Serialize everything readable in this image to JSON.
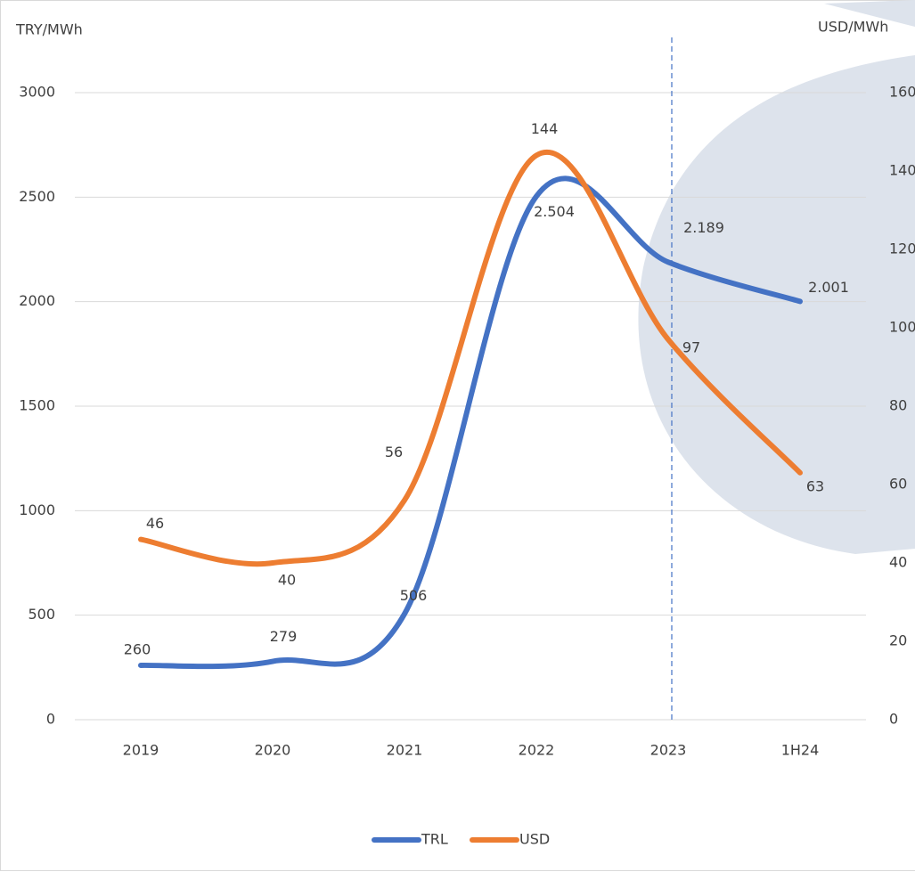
{
  "chart_data": {
    "type": "line",
    "y_label": "TRY/MWh",
    "y2_label": "USD/MWh",
    "categories": [
      "2019",
      "2020",
      "2021",
      "2022",
      "2023",
      "1H24"
    ],
    "series": [
      {
        "name": "TRL",
        "color": "#4472c4",
        "values": [
          260,
          279,
          506,
          2504,
          2189,
          2001
        ],
        "value_labels": [
          "260",
          "279",
          "506",
          "2.504",
          "2.189",
          "2.001"
        ]
      },
      {
        "name": "USD",
        "color": "#ed7d31",
        "axis": "y2",
        "values": [
          46,
          40,
          56,
          144,
          97,
          63
        ]
      }
    ],
    "ylim": [
      0,
      3000
    ],
    "yticks": [
      0,
      500,
      1000,
      1500,
      2000,
      2500,
      3000
    ],
    "y2lim": [
      0,
      160
    ],
    "y2ticks": [
      0,
      20,
      40,
      60,
      80,
      100,
      120,
      140,
      160
    ],
    "grid": true,
    "legend": "bottom",
    "marker_line_category": "2023"
  }
}
